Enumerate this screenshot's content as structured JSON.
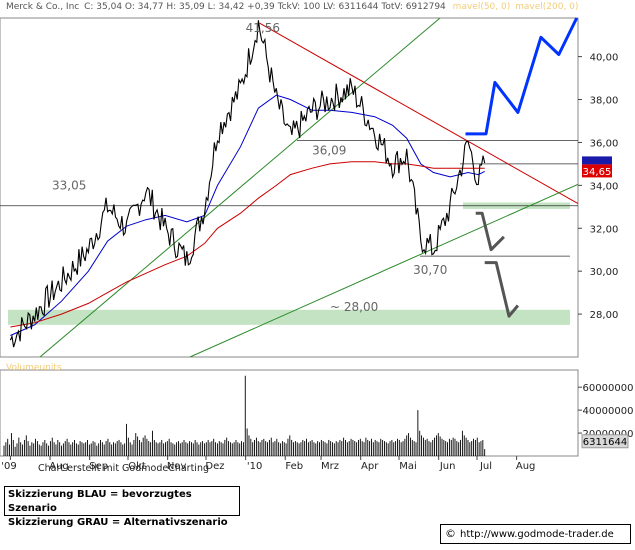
{
  "header": {
    "title": "Merck & Co., Inc",
    "stats": "C: 35,04  O: 34,77  H: 35,09  L: 34,42  +0,39  TckV: 100  LV: 6311644  TotV: 6912794",
    "ma1_label": "mavel(50, 0)",
    "ma2_label": "mavel(200, 0)"
  },
  "volume_label": "Volumeunits",
  "footer": {
    "credit": "Chart erstellt mit GodmodeCharting",
    "legend_blue": "Skizzierung BLAU = bevorzugtes Szenario",
    "legend_grey": "Skizzierung GRAU = Alternativszenario",
    "copyright_symbol": "©",
    "url": "http://www.godmode-trader.de"
  },
  "colors": {
    "price": "#000000",
    "ma50": "#0000cc",
    "ma200": "#cc0000",
    "trendline_red": "#cc0000",
    "trend_green": "#2a8a2a",
    "zone": "#c3e3c3",
    "scenario_blue": "#0033ff",
    "scenario_grey": "#555555",
    "price_marker_blue": "#1a1aaa",
    "price_marker_red": "#dd0000",
    "axis_text": "#222222",
    "annotation_text": "#666666"
  },
  "chart_data": [
    {
      "type": "line",
      "title": "Merck & Co., Inc",
      "x": [
        "2009-07-01",
        "2009-07-20",
        "2009-08-10",
        "2009-08-31",
        "2009-09-15",
        "2009-09-30",
        "2009-10-15",
        "2009-10-30",
        "2009-11-16",
        "2009-11-30",
        "2009-12-10",
        "2009-12-28",
        "2010-01-11",
        "2010-01-25",
        "2010-02-05",
        "2010-02-22",
        "2010-03-08",
        "2010-03-25",
        "2010-04-12",
        "2010-04-26",
        "2010-05-07",
        "2010-05-18",
        "2010-05-28",
        "2010-06-10",
        "2010-06-24",
        "2010-07-02",
        "2010-07-07"
      ],
      "series": [
        {
          "name": "Merck & Co., Inc",
          "values": [
            26.8,
            28.0,
            29.5,
            31.0,
            33.0,
            32.0,
            33.8,
            32.0,
            30.5,
            33.0,
            36.5,
            38.5,
            41.56,
            38.0,
            36.2,
            37.5,
            38.0,
            38.5,
            36.5,
            35.0,
            35.4,
            31.5,
            31.0,
            33.0,
            36.0,
            34.2,
            35.04
          ]
        },
        {
          "name": "mavel(50, 0)",
          "values": [
            27.0,
            27.5,
            28.6,
            30.0,
            31.4,
            32.1,
            32.4,
            32.6,
            32.3,
            32.6,
            34.0,
            35.8,
            37.6,
            38.2,
            38.0,
            37.5,
            37.5,
            37.4,
            37.2,
            36.8,
            36.2,
            35.0,
            34.6,
            34.4,
            34.6,
            34.5,
            34.65
          ]
        },
        {
          "name": "mavel(200, 0)",
          "values": [
            27.4,
            27.6,
            28.0,
            28.5,
            29.0,
            29.5,
            29.9,
            30.3,
            30.7,
            31.3,
            32.0,
            32.7,
            33.4,
            34.0,
            34.5,
            34.8,
            35.0,
            35.1,
            35.1,
            35.0,
            35.0,
            34.9,
            34.8,
            34.8,
            34.8,
            34.8,
            34.8
          ]
        }
      ],
      "annotations": [
        "41,56",
        "36,09",
        "33,05",
        "30,70",
        "~ 28,00"
      ],
      "support_zones": [
        {
          "from": 32.9,
          "to": 33.2
        },
        {
          "from": 27.5,
          "to": 28.2
        }
      ],
      "current_price": "34,65",
      "xlabel": "",
      "ylabel": "",
      "x_ticks": [
        "'09",
        "Aug",
        "Sep",
        "Okt",
        "Nov",
        "Dez",
        "'10",
        "Feb",
        "Mrz",
        "Apr",
        "Mai",
        "Jun",
        "Jul",
        "Aug"
      ],
      "y_ticks": [
        "28,00",
        "30,00",
        "32,00",
        "34,00",
        "36,00",
        "38,00",
        "40,00"
      ],
      "ylim": [
        26.0,
        41.8
      ],
      "grid": false,
      "legend": "top"
    },
    {
      "type": "bar",
      "title": "Volumeunits",
      "y_ticks": [
        "20000000",
        "40000000",
        "60000000"
      ],
      "ylim": [
        0,
        75000000
      ],
      "last_value": "6311644",
      "values": [
        9,
        12,
        15,
        10,
        20,
        14,
        8,
        11,
        16,
        12,
        10,
        14,
        18,
        13,
        9,
        12,
        11,
        15,
        13,
        10,
        9,
        12,
        14,
        11,
        9,
        13,
        16,
        12,
        10,
        14,
        12,
        9,
        11,
        13,
        15,
        12,
        10,
        12,
        14,
        11,
        10,
        13,
        12,
        11,
        12,
        14,
        10,
        11,
        13,
        12,
        9,
        11,
        14,
        12,
        10,
        13,
        15,
        12,
        10,
        12,
        11,
        13,
        14,
        12,
        10,
        11,
        28,
        16,
        12,
        10,
        14,
        20,
        17,
        14,
        12,
        16,
        18,
        15,
        13,
        12,
        22,
        14,
        12,
        11,
        12,
        14,
        11,
        12,
        13,
        15,
        12,
        11,
        10,
        12,
        13,
        11,
        12,
        14,
        12,
        11,
        13,
        12,
        11,
        14,
        12,
        10,
        12,
        13,
        11,
        12,
        14,
        12,
        13,
        15,
        12,
        11,
        13,
        12,
        11,
        14,
        16,
        13,
        12,
        11,
        12,
        14,
        12,
        11,
        13,
        12,
        70,
        24,
        18,
        15,
        12,
        14,
        16,
        13,
        12,
        14,
        15,
        13,
        12,
        14,
        16,
        12,
        13,
        15,
        12,
        11,
        13,
        12,
        11,
        15,
        18,
        14,
        12,
        13,
        12,
        11,
        12,
        14,
        13,
        15,
        12,
        13,
        14,
        12,
        11,
        13,
        12,
        14,
        13,
        12,
        11,
        14,
        13,
        12,
        11,
        13,
        12,
        14,
        13,
        16,
        14,
        12,
        13,
        15,
        14,
        13,
        12,
        14,
        15,
        13,
        12,
        16,
        14,
        13,
        15,
        12,
        14,
        13,
        12,
        15,
        14,
        13,
        12,
        11,
        13,
        14,
        12,
        13,
        15,
        14,
        12,
        13,
        15,
        18,
        20,
        16,
        14,
        13,
        12,
        40,
        22,
        18,
        16,
        14,
        15,
        13,
        12,
        14,
        16,
        18,
        20,
        17,
        15,
        14,
        13,
        12,
        15,
        14,
        16,
        15,
        13,
        12,
        14,
        22,
        18,
        16,
        14,
        12,
        13,
        15,
        14,
        16,
        12,
        13,
        14,
        6
      ]
    }
  ]
}
